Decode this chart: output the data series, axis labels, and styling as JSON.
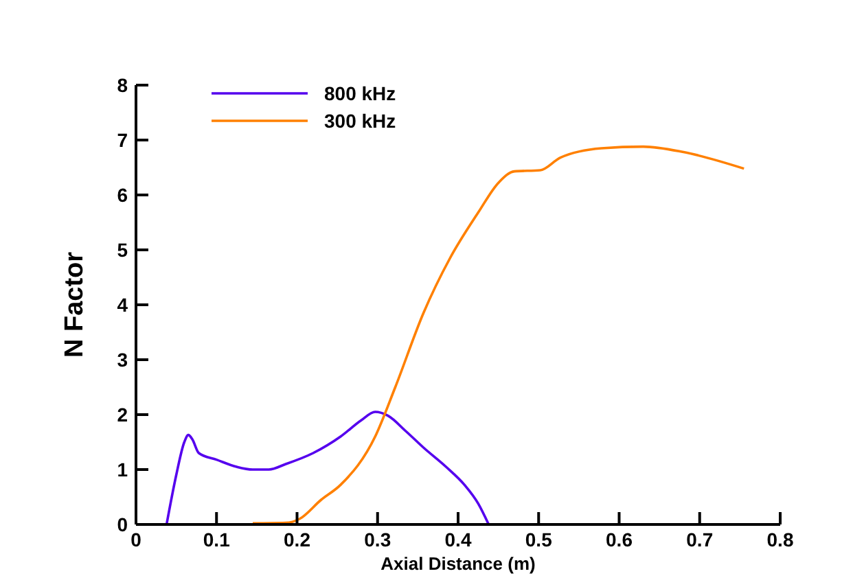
{
  "chart_data": {
    "type": "line",
    "xlabel": "Axial Distance (m)",
    "ylabel": "N Factor",
    "xlim": [
      0,
      0.8
    ],
    "ylim": [
      0,
      8
    ],
    "xticks": [
      0,
      0.1,
      0.2,
      0.3,
      0.4,
      0.5,
      0.6,
      0.7,
      0.8
    ],
    "yticks": [
      0,
      1,
      2,
      3,
      4,
      5,
      6,
      7,
      8
    ],
    "legend": "top left",
    "grid": false,
    "series": [
      {
        "name": "800 kHz",
        "color": "#5500ee",
        "x": [
          0.038,
          0.05,
          0.06,
          0.065,
          0.07,
          0.078,
          0.1,
          0.125,
          0.145,
          0.165,
          0.186,
          0.22,
          0.254,
          0.28,
          0.297,
          0.313,
          0.335,
          0.357,
          0.385,
          0.408,
          0.425,
          0.438
        ],
        "values": [
          0,
          0.9,
          1.5,
          1.63,
          1.55,
          1.3,
          1.18,
          1.05,
          1.0,
          1.0,
          1.1,
          1.3,
          1.6,
          1.9,
          2.05,
          1.98,
          1.7,
          1.4,
          1.05,
          0.72,
          0.38,
          0
        ]
      },
      {
        "name": "300 kHz",
        "color": "#ff8000",
        "x": [
          0.145,
          0.186,
          0.203,
          0.23,
          0.254,
          0.297,
          0.322,
          0.357,
          0.39,
          0.425,
          0.45,
          0.47,
          0.502,
          0.527,
          0.578,
          0.63,
          0.68,
          0.755
        ],
        "values": [
          0.02,
          0.03,
          0.1,
          0.45,
          0.72,
          1.6,
          2.5,
          3.85,
          4.85,
          5.68,
          6.22,
          6.43,
          6.45,
          6.68,
          6.85,
          6.88,
          6.78,
          6.48
        ]
      }
    ]
  }
}
